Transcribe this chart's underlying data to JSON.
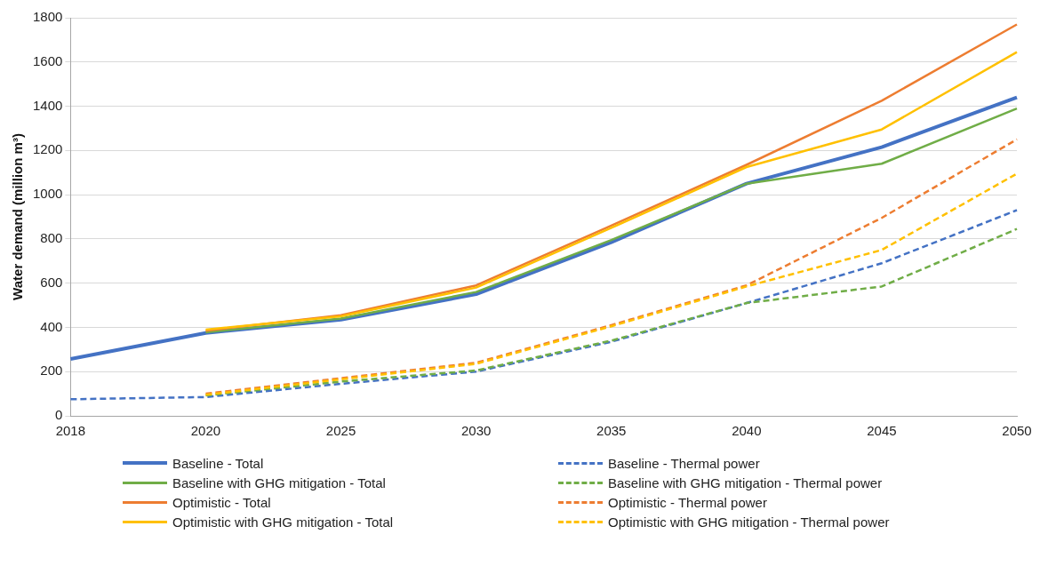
{
  "chart_data": {
    "type": "line",
    "ylabel": "Water demand (million m³)",
    "categories": [
      "2018",
      "2020",
      "2025",
      "2030",
      "2035",
      "2040",
      "2045",
      "2050"
    ],
    "ylim": [
      0,
      1800
    ],
    "yticks": [
      0,
      200,
      400,
      600,
      800,
      1000,
      1200,
      1400,
      1600,
      1800
    ],
    "grid": "y",
    "legend": "bottom",
    "series": [
      {
        "name": "Baseline - Total",
        "color": "#4472c4",
        "line_style": "solid",
        "values": [
          257,
          375,
          435,
          550,
          785,
          1050,
          1215,
          1440
        ]
      },
      {
        "name": "Baseline with GHG mitigation - Total",
        "color": "#70ad47",
        "line_style": "solid",
        "values": [
          null,
          378,
          440,
          560,
          795,
          1050,
          1140,
          1390
        ]
      },
      {
        "name": "Optimistic - Total",
        "color": "#ed7d31",
        "line_style": "solid",
        "values": [
          null,
          385,
          455,
          590,
          860,
          1135,
          1425,
          1770
        ]
      },
      {
        "name": "Optimistic with GHG mitigation - Total",
        "color": "#ffc000",
        "line_style": "solid",
        "values": [
          null,
          390,
          450,
          580,
          850,
          1125,
          1295,
          1645
        ]
      },
      {
        "name": "Baseline - Thermal power",
        "color": "#4472c4",
        "line_style": "dashed",
        "values": [
          75,
          85,
          145,
          200,
          335,
          510,
          690,
          930
        ]
      },
      {
        "name": "Baseline with GHG mitigation - Thermal power",
        "color": "#70ad47",
        "line_style": "dashed",
        "values": [
          null,
          92,
          155,
          205,
          340,
          510,
          585,
          845
        ]
      },
      {
        "name": "Optimistic - Thermal power",
        "color": "#ed7d31",
        "line_style": "dashed",
        "values": [
          null,
          100,
          170,
          240,
          410,
          590,
          895,
          1250
        ]
      },
      {
        "name": "Optimistic with GHG mitigation - Thermal power",
        "color": "#ffc000",
        "line_style": "dashed",
        "values": [
          null,
          95,
          165,
          235,
          405,
          585,
          750,
          1095
        ]
      }
    ]
  }
}
